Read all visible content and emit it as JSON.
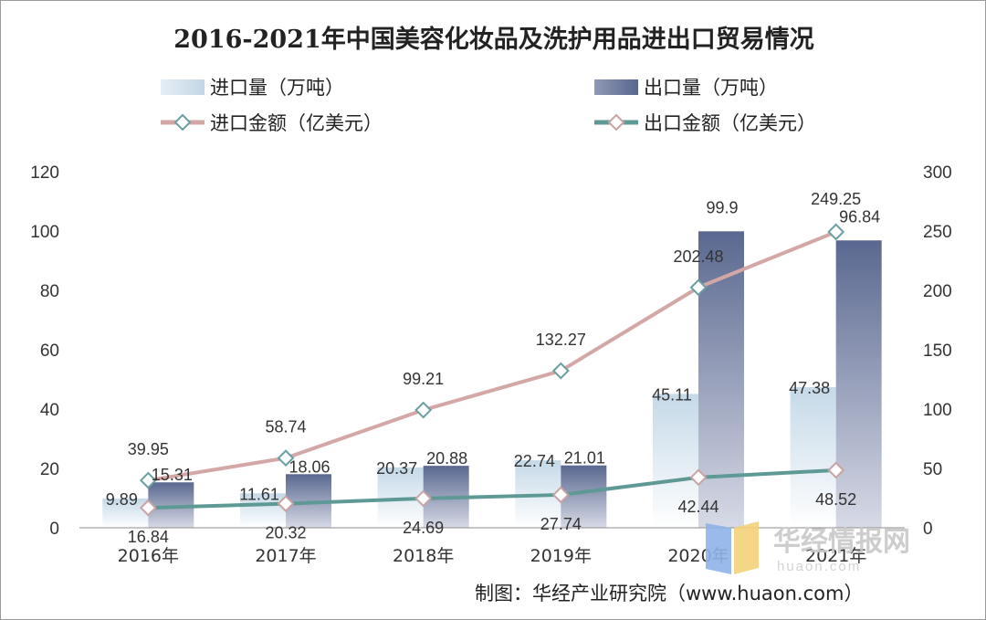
{
  "chart_data": {
    "type": "bar",
    "title": "2016-2021年中国美容化妆品及洗护用品进出口贸易情况",
    "categories": [
      "2016年",
      "2017年",
      "2018年",
      "2019年",
      "2020年",
      "2021年"
    ],
    "y_left_range": [
      0,
      120
    ],
    "y_left_ticks": [
      "0",
      "20",
      "40",
      "60",
      "80",
      "100",
      "120"
    ],
    "y_right_range": [
      0,
      300
    ],
    "y_right_ticks": [
      "0",
      "50",
      "100",
      "150",
      "200",
      "250",
      "300"
    ],
    "legend_placement": "top",
    "grid": false,
    "series": [
      {
        "name": "进口量（万吨）",
        "kind": "bar",
        "axis": "left",
        "color": "#c9dcea",
        "values": [
          9.89,
          11.61,
          20.37,
          22.74,
          45.11,
          47.38
        ],
        "labels": [
          "9.89",
          "11.61",
          "20.37",
          "22.74",
          "45.11",
          "47.38"
        ]
      },
      {
        "name": "出口量（万吨）",
        "kind": "bar",
        "axis": "left",
        "color": "#5f6d94",
        "values": [
          15.31,
          18.06,
          20.88,
          21.01,
          99.9,
          96.84
        ],
        "labels": [
          "15.31",
          "18.06",
          "20.88",
          "21.01",
          "99.9",
          "96.84"
        ]
      },
      {
        "name": "进口金额（亿美元）",
        "kind": "line",
        "axis": "right",
        "color": "#d4a7a7",
        "values": [
          39.95,
          58.74,
          99.21,
          132.27,
          202.48,
          249.25
        ],
        "labels": [
          "39.95",
          "58.74",
          "99.21",
          "132.27",
          "202.48",
          "249.25"
        ]
      },
      {
        "name": "出口金额（亿美元）",
        "kind": "line",
        "axis": "right",
        "color": "#5f9995",
        "values": [
          16.84,
          20.32,
          24.69,
          27.74,
          42.44,
          48.52
        ],
        "labels": [
          "16.84",
          "20.32",
          "24.69",
          "27.74",
          "42.44",
          "48.52"
        ]
      }
    ]
  },
  "source": "制图：华经产业研究院（www.huaon.com）",
  "watermark": {
    "text": "华经情报网",
    "subtext": "huaon.com"
  }
}
